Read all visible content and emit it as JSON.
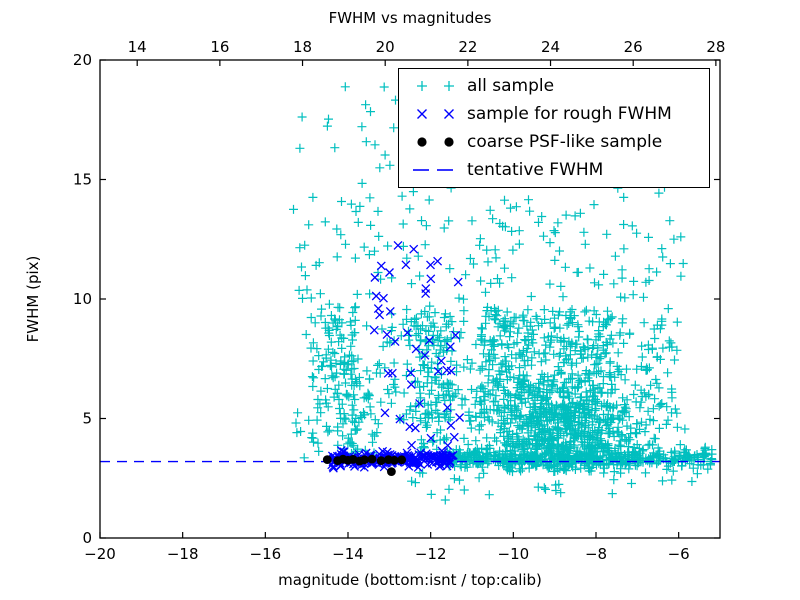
{
  "chart_data": {
    "type": "scatter",
    "title": "FWHM vs magnitudes",
    "xlabel": "magnitude (bottom:isnt / top:calib)",
    "ylabel": "FWHM (pix)",
    "axes": {
      "xlim": [
        -20,
        -5
      ],
      "ylim": [
        0,
        20
      ],
      "grid": false,
      "x_ticks": {
        "values": [
          -20,
          -18,
          -16,
          -14,
          -12,
          -10,
          -8,
          -6
        ],
        "labels": [
          "−20",
          "−18",
          "−16",
          "−14",
          "−12",
          "−10",
          "−8",
          "−6"
        ]
      },
      "y_ticks": {
        "values": [
          0,
          5,
          10,
          15,
          20
        ],
        "labels": [
          "0",
          "5",
          "10",
          "15",
          "20"
        ]
      },
      "top_ticks": {
        "values": [
          14,
          16,
          18,
          20,
          22,
          24,
          26,
          28
        ],
        "labels": [
          "14",
          "16",
          "18",
          "20",
          "22",
          "24",
          "26",
          "28"
        ],
        "offset_from_bottom_axis": 33.1
      }
    },
    "legend": {
      "position": "upper right",
      "entries": [
        {
          "label": "all sample",
          "marker": "plus",
          "color": "#00bfbf"
        },
        {
          "label": "sample for rough FWHM",
          "marker": "x",
          "color": "#0000ff"
        },
        {
          "label": "coarse PSF-like sample",
          "marker": "dot",
          "color": "#000000"
        },
        {
          "label": "tentative FWHM",
          "marker": "dashed-line",
          "color": "#0000ff"
        }
      ]
    },
    "tentative_fwhm": {
      "y": 3.2,
      "color": "#0000ff",
      "style": "dashed"
    },
    "series": [
      {
        "name": "all sample",
        "marker": "plus",
        "color": "#00bfbf",
        "clusters": [
          {
            "n": 80,
            "dist": "uniform",
            "x": [
              -15.2,
              -5.8
            ],
            "y": [
              14,
              18.9
            ]
          },
          {
            "n": 170,
            "dist": "uniform",
            "x": [
              -15.2,
              -5.8
            ],
            "y": [
              8,
              14
            ]
          },
          {
            "n": 120,
            "dist": "uniform",
            "x": [
              -14.9,
              -13.8
            ],
            "y": [
              3.4,
              9.8
            ]
          },
          {
            "n": 60,
            "dist": "uniform",
            "x": [
              -14.1,
              -13.2
            ],
            "y": [
              3.4,
              7.5
            ]
          },
          {
            "n": 90,
            "dist": "uniform",
            "x": [
              -12.4,
              -11.5
            ],
            "y": [
              3.6,
              9.5
            ]
          },
          {
            "n": 330,
            "dist": "uniform",
            "x": [
              -13.2,
              -6.0
            ],
            "y": [
              4.8,
              9.2
            ]
          },
          {
            "n": 240,
            "dist": "uniform",
            "x": [
              -10.8,
              -7.6
            ],
            "y": [
              5.3,
              9.6
            ]
          },
          {
            "n": 650,
            "dist": "gauss",
            "cx": -8.8,
            "sx": 1.0,
            "cy": 4.4,
            "sy": 1.1,
            "clip_y": [
              2.7,
              9.5
            ]
          },
          {
            "n": 500,
            "dist": "hband",
            "x": [
              -11.6,
              -5.15
            ],
            "cy": 3.35,
            "sy": 0.22,
            "clip_y": [
              2.6,
              4.3
            ]
          },
          {
            "n": 26,
            "dist": "uniform",
            "x": [
              -15.0,
              -5.3
            ],
            "y": [
              1.5,
              2.8
            ]
          },
          {
            "n": 12,
            "dist": "uniform",
            "x": [
              -15.35,
              -14.9
            ],
            "y": [
              3.2,
              16
            ]
          }
        ]
      },
      {
        "name": "sample for rough FWHM",
        "marker": "x",
        "color": "#0000ff",
        "clusters": [
          {
            "n": 230,
            "dist": "hband",
            "x": [
              -14.4,
              -11.45
            ],
            "cy": 3.3,
            "sy": 0.14,
            "clip_y": [
              2.8,
              3.8
            ]
          },
          {
            "n": 46,
            "dist": "uniform",
            "x": [
              -13.4,
              -11.3
            ],
            "y": [
              3.8,
              12.3
            ]
          }
        ]
      },
      {
        "name": "coarse PSF-like sample",
        "marker": "dot",
        "color": "#000000",
        "points": [
          [
            -14.5,
            3.28
          ],
          [
            -14.25,
            3.24
          ],
          [
            -14.12,
            3.3
          ],
          [
            -14.0,
            3.25
          ],
          [
            -13.88,
            3.29
          ],
          [
            -13.72,
            3.22
          ],
          [
            -13.6,
            3.27
          ],
          [
            -13.42,
            3.3
          ],
          [
            -13.2,
            3.24
          ],
          [
            -13.02,
            3.28
          ],
          [
            -12.88,
            3.25
          ],
          [
            -12.7,
            3.27
          ],
          [
            -12.95,
            2.78
          ]
        ]
      }
    ]
  }
}
